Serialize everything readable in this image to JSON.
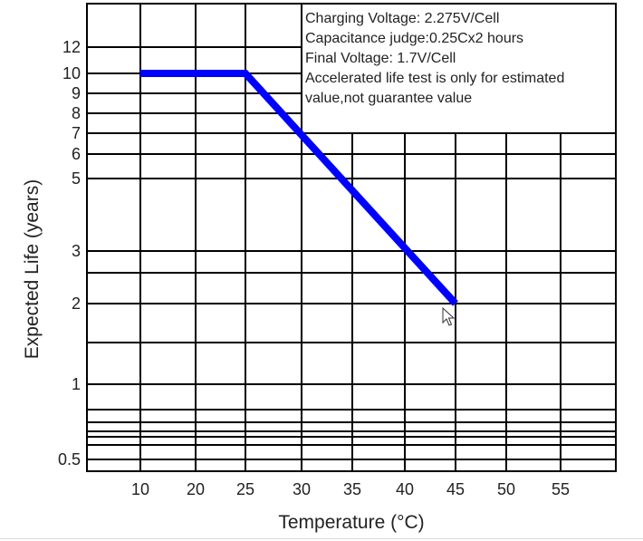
{
  "chart_data": {
    "type": "line",
    "xlabel": "Temperature (°C)",
    "ylabel": "Expected Life (years)",
    "x_ticks": [
      "10",
      "20",
      "25",
      "30",
      "35",
      "40",
      "45",
      "50",
      "55"
    ],
    "y_ticks": [
      "0.5",
      "1",
      "2",
      "3",
      "5",
      "6",
      "7",
      "8",
      "9",
      "10",
      "12"
    ],
    "x_grid": [
      10,
      20,
      25,
      30,
      35,
      40,
      45,
      50,
      55
    ],
    "y_grid": [
      0.5,
      0.6,
      0.65,
      0.7,
      0.8,
      0.9,
      1,
      1.5,
      2,
      2.5,
      3,
      5,
      6,
      7,
      8,
      9,
      10,
      12
    ],
    "y_scale": "log",
    "grid": true,
    "series": [
      {
        "x": [
          10,
          25,
          45
        ],
        "y": [
          10,
          10,
          2
        ],
        "color": "#0000ff"
      }
    ],
    "annotation": [
      "Charging Voltage: 2.275V/Cell",
      "Capacitance judge:0.25Cx2 hours",
      "Final Voltage: 1.7V/Cell",
      "Accelerated life test is only for estimated",
      "value,not guarantee value"
    ]
  }
}
